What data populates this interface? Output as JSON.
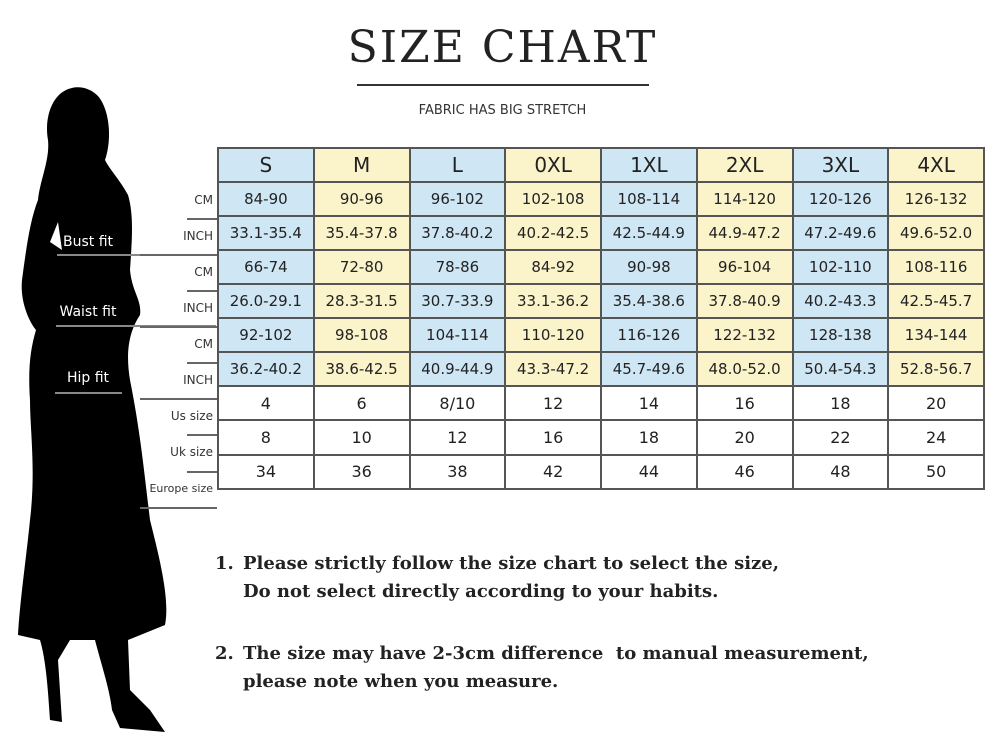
{
  "title": "SIZE CHART",
  "subtitle": "FABRIC HAS BIG STRETCH",
  "colors": {
    "blue_column": "#cfe6f5",
    "yellow_column": "#fbf4cb",
    "silhouette": "#000000"
  },
  "fit_labels": [
    "Bust fit",
    "Waist fit",
    "Hip fit"
  ],
  "sizes": [
    "S",
    "M",
    "L",
    "0XL",
    "1XL",
    "2XL",
    "3XL",
    "4XL"
  ],
  "rows": [
    {
      "label": "CM",
      "values": [
        "84-90",
        "90-96",
        "96-102",
        "102-108",
        "108-114",
        "114-120",
        "120-126",
        "126-132"
      ]
    },
    {
      "label": "INCH",
      "values": [
        "33.1-35.4",
        "35.4-37.8",
        "37.8-40.2",
        "40.2-42.5",
        "42.5-44.9",
        "44.9-47.2",
        "47.2-49.6",
        "49.6-52.0"
      ]
    },
    {
      "label": "CM",
      "values": [
        "66-74",
        "72-80",
        "78-86",
        "84-92",
        "90-98",
        "96-104",
        "102-110",
        "108-116"
      ]
    },
    {
      "label": "INCH",
      "values": [
        "26.0-29.1",
        "28.3-31.5",
        "30.7-33.9",
        "33.1-36.2",
        "35.4-38.6",
        "37.8-40.9",
        "40.2-43.3",
        "42.5-45.7"
      ]
    },
    {
      "label": "CM",
      "values": [
        "92-102",
        "98-108",
        "104-114",
        "110-120",
        "116-126",
        "122-132",
        "128-138",
        "134-144"
      ]
    },
    {
      "label": "INCH",
      "values": [
        "36.2-40.2",
        "38.6-42.5",
        "40.9-44.9",
        "43.3-47.2",
        "45.7-49.6",
        "48.0-52.0",
        "50.4-54.3",
        "52.8-56.7"
      ]
    },
    {
      "label": "Us size",
      "values": [
        "4",
        "6",
        "8/10",
        "12",
        "14",
        "16",
        "18",
        "20"
      ]
    },
    {
      "label": "Uk size",
      "values": [
        "8",
        "10",
        "12",
        "16",
        "18",
        "20",
        "22",
        "24"
      ]
    },
    {
      "label": "Europe size",
      "values": [
        "34",
        "36",
        "38",
        "42",
        "44",
        "46",
        "48",
        "50"
      ]
    }
  ],
  "notes": [
    {
      "number": "1.",
      "lines": [
        "Please strictly follow the size chart to select the size,",
        "Do not select directly according to your habits."
      ]
    },
    {
      "number": "2.",
      "lines": [
        "The size may have 2-3cm difference  to manual measurement,",
        "please note when you measure."
      ]
    }
  ]
}
